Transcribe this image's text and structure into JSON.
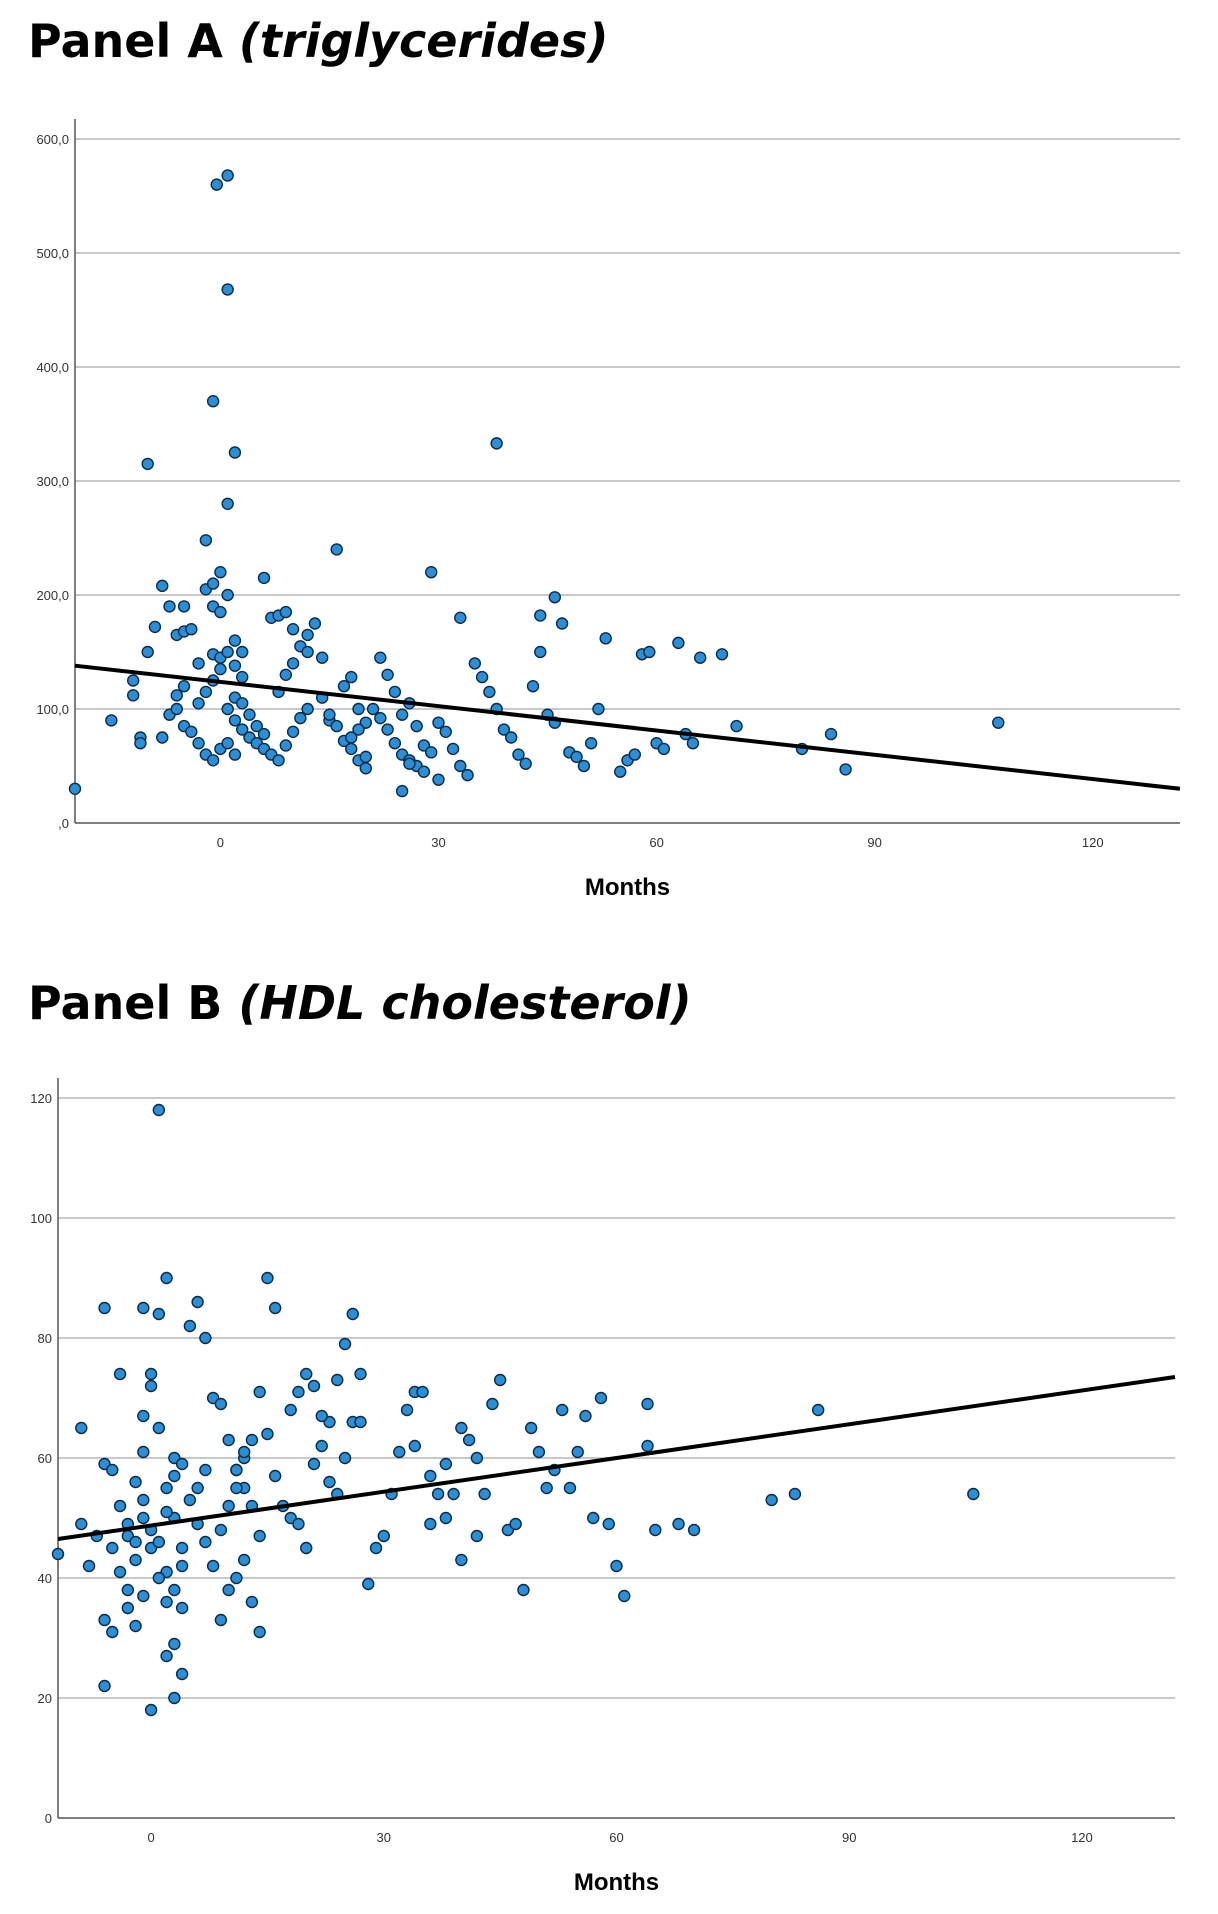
{
  "chart_data": [
    {
      "type": "scatter",
      "panel_title": "Panel A",
      "panel_subtitle": "(triglycerides)",
      "xlabel": "Months",
      "ylabel": "",
      "xlim": [
        -20,
        132
      ],
      "ylim": [
        0,
        600
      ],
      "x_ticks": [
        0,
        30,
        60,
        90,
        120
      ],
      "x_tick_labels": [
        "0",
        "30",
        "60",
        "90",
        "120"
      ],
      "y_ticks": [
        0,
        100,
        200,
        300,
        400,
        500,
        600
      ],
      "y_tick_labels": [
        ",0",
        "100,0",
        "200,0",
        "300,0",
        "400,0",
        "500,0",
        "600,0"
      ],
      "grid": true,
      "fit_line": {
        "x": [
          -20,
          132
        ],
        "y": [
          138,
          30
        ]
      },
      "points": [
        [
          -20,
          30
        ],
        [
          -15,
          90
        ],
        [
          -10,
          315
        ],
        [
          -11,
          75
        ],
        [
          -11,
          70
        ],
        [
          -12,
          112
        ],
        [
          -12,
          125
        ],
        [
          -10,
          150
        ],
        [
          -9,
          172
        ],
        [
          -8,
          208
        ],
        [
          -7,
          190
        ],
        [
          -6,
          165
        ],
        [
          -5,
          190
        ],
        [
          -5,
          168
        ],
        [
          -4,
          170
        ],
        [
          -3,
          140
        ],
        [
          -2,
          248
        ],
        [
          -2,
          205
        ],
        [
          -1,
          370
        ],
        [
          -1,
          210
        ],
        [
          0,
          220
        ],
        [
          -1,
          190
        ],
        [
          1,
          200
        ],
        [
          0,
          185
        ],
        [
          2,
          160
        ],
        [
          3,
          150
        ],
        [
          -8,
          75
        ],
        [
          -7,
          95
        ],
        [
          -6,
          100
        ],
        [
          -5,
          85
        ],
        [
          -4,
          80
        ],
        [
          -3,
          70
        ],
        [
          -2,
          60
        ],
        [
          -1,
          55
        ],
        [
          0,
          65
        ],
        [
          -6,
          112
        ],
        [
          -5,
          120
        ],
        [
          -3,
          105
        ],
        [
          -2,
          115
        ],
        [
          -1,
          125
        ],
        [
          0,
          135
        ],
        [
          -1,
          148
        ],
        [
          0,
          145
        ],
        [
          1,
          150
        ],
        [
          2,
          138
        ],
        [
          3,
          128
        ],
        [
          2,
          110
        ],
        [
          1,
          100
        ],
        [
          2,
          90
        ],
        [
          3,
          82
        ],
        [
          4,
          75
        ],
        [
          1,
          70
        ],
        [
          2,
          60
        ],
        [
          3,
          105
        ],
        [
          4,
          95
        ],
        [
          5,
          85
        ],
        [
          6,
          78
        ],
        [
          5,
          70
        ],
        [
          6,
          65
        ],
        [
          7,
          60
        ],
        [
          8,
          55
        ],
        [
          9,
          68
        ],
        [
          10,
          80
        ],
        [
          11,
          92
        ],
        [
          12,
          100
        ],
        [
          8,
          115
        ],
        [
          9,
          130
        ],
        [
          10,
          140
        ],
        [
          11,
          155
        ],
        [
          12,
          165
        ],
        [
          13,
          175
        ],
        [
          7,
          180
        ],
        [
          8,
          182
        ],
        [
          9,
          185
        ],
        [
          6,
          215
        ],
        [
          10,
          170
        ],
        [
          12,
          150
        ],
        [
          14,
          145
        ],
        [
          -0.5,
          560
        ],
        [
          1,
          568
        ],
        [
          1,
          468
        ],
        [
          2,
          325
        ],
        [
          1,
          280
        ],
        [
          16,
          240
        ],
        [
          29,
          220
        ],
        [
          38,
          333
        ],
        [
          46,
          198
        ],
        [
          33,
          180
        ],
        [
          44,
          182
        ],
        [
          47,
          175
        ],
        [
          15,
          90
        ],
        [
          16,
          85
        ],
        [
          17,
          72
        ],
        [
          18,
          65
        ],
        [
          19,
          55
        ],
        [
          20,
          48
        ],
        [
          21,
          100
        ],
        [
          22,
          92
        ],
        [
          23,
          82
        ],
        [
          24,
          70
        ],
        [
          25,
          60
        ],
        [
          26,
          55
        ],
        [
          27,
          50
        ],
        [
          14,
          110
        ],
        [
          15,
          95
        ],
        [
          17,
          120
        ],
        [
          18,
          128
        ],
        [
          19,
          100
        ],
        [
          20,
          88
        ],
        [
          22,
          145
        ],
        [
          23,
          130
        ],
        [
          24,
          115
        ],
        [
          25,
          95
        ],
        [
          26,
          105
        ],
        [
          27,
          85
        ],
        [
          28,
          68
        ],
        [
          29,
          62
        ],
        [
          30,
          88
        ],
        [
          31,
          80
        ],
        [
          32,
          65
        ],
        [
          33,
          50
        ],
        [
          34,
          42
        ],
        [
          35,
          140
        ],
        [
          36,
          128
        ],
        [
          37,
          115
        ],
        [
          38,
          100
        ],
        [
          39,
          82
        ],
        [
          40,
          75
        ],
        [
          41,
          60
        ],
        [
          42,
          52
        ],
        [
          43,
          120
        ],
        [
          44,
          150
        ],
        [
          45,
          95
        ],
        [
          46,
          88
        ],
        [
          48,
          62
        ],
        [
          49,
          58
        ],
        [
          50,
          50
        ],
        [
          51,
          70
        ],
        [
          52,
          100
        ],
        [
          53,
          162
        ],
        [
          55,
          45
        ],
        [
          56,
          55
        ],
        [
          57,
          60
        ],
        [
          58,
          148
        ],
        [
          59,
          150
        ],
        [
          60,
          70
        ],
        [
          61,
          65
        ],
        [
          63,
          158
        ],
        [
          64,
          78
        ],
        [
          65,
          70
        ],
        [
          66,
          145
        ],
        [
          69,
          148
        ],
        [
          71,
          85
        ],
        [
          80,
          65
        ],
        [
          84,
          78
        ],
        [
          86,
          47
        ],
        [
          107,
          88
        ],
        [
          25,
          28
        ],
        [
          26,
          52
        ],
        [
          28,
          45
        ],
        [
          30,
          38
        ],
        [
          18,
          75
        ],
        [
          19,
          82
        ],
        [
          20,
          58
        ]
      ]
    },
    {
      "type": "scatter",
      "panel_title": "Panel B",
      "panel_subtitle": "(HDL cholesterol)",
      "xlabel": "Months",
      "ylabel": "",
      "xlim": [
        -12,
        132
      ],
      "ylim": [
        0,
        120
      ],
      "x_ticks": [
        0,
        30,
        60,
        90,
        120
      ],
      "x_tick_labels": [
        "0",
        "30",
        "60",
        "90",
        "120"
      ],
      "y_ticks": [
        0,
        20,
        40,
        60,
        80,
        100,
        120
      ],
      "y_tick_labels": [
        "0",
        "20",
        "40",
        "60",
        "80",
        "100",
        "120"
      ],
      "grid": true,
      "fit_line": {
        "x": [
          -12,
          132
        ],
        "y": [
          46.5,
          73.5
        ]
      },
      "points": [
        [
          -12,
          44
        ],
        [
          -9,
          65
        ],
        [
          -9,
          49
        ],
        [
          -6,
          22
        ],
        [
          -6,
          33
        ],
        [
          -5,
          31
        ],
        [
          -6,
          59
        ],
        [
          -5,
          45
        ],
        [
          -4,
          74
        ],
        [
          -6,
          85
        ],
        [
          -4,
          41
        ],
        [
          -3,
          38
        ],
        [
          -2,
          43
        ],
        [
          -1,
          50
        ],
        [
          -2,
          56
        ],
        [
          -1,
          61
        ],
        [
          -3,
          47
        ],
        [
          -2,
          32
        ],
        [
          -1,
          37
        ],
        [
          0,
          45
        ],
        [
          -1,
          67
        ],
        [
          0,
          74
        ],
        [
          1,
          84
        ],
        [
          -1,
          85
        ],
        [
          0,
          72
        ],
        [
          1,
          65
        ],
        [
          2,
          90
        ],
        [
          3,
          60
        ],
        [
          2,
          55
        ],
        [
          3,
          50
        ],
        [
          4,
          45
        ],
        [
          2,
          41
        ],
        [
          3,
          38
        ],
        [
          4,
          35
        ],
        [
          3,
          29
        ],
        [
          2,
          27
        ],
        [
          4,
          24
        ],
        [
          0,
          18
        ],
        [
          3,
          20
        ],
        [
          5,
          82
        ],
        [
          6,
          86
        ],
        [
          7,
          80
        ],
        [
          8,
          70
        ],
        [
          9,
          69
        ],
        [
          10,
          63
        ],
        [
          11,
          58
        ],
        [
          12,
          55
        ],
        [
          13,
          52
        ],
        [
          14,
          47
        ],
        [
          12,
          43
        ],
        [
          11,
          40
        ],
        [
          10,
          38
        ],
        [
          9,
          33
        ],
        [
          13,
          36
        ],
        [
          14,
          31
        ],
        [
          15,
          64
        ],
        [
          16,
          57
        ],
        [
          17,
          52
        ],
        [
          18,
          50
        ],
        [
          19,
          49
        ],
        [
          20,
          45
        ],
        [
          21,
          59
        ],
        [
          22,
          62
        ],
        [
          23,
          66
        ],
        [
          24,
          73
        ],
        [
          25,
          79
        ],
        [
          26,
          84
        ],
        [
          27,
          74
        ],
        [
          15,
          90
        ],
        [
          16,
          85
        ],
        [
          14,
          71
        ],
        [
          13,
          63
        ],
        [
          12,
          60
        ],
        [
          11,
          58
        ],
        [
          18,
          68
        ],
        [
          19,
          71
        ],
        [
          20,
          74
        ],
        [
          21,
          72
        ],
        [
          22,
          67
        ],
        [
          23,
          56
        ],
        [
          24,
          54
        ],
        [
          25,
          60
        ],
        [
          26,
          66
        ],
        [
          27,
          66
        ],
        [
          28,
          39
        ],
        [
          29,
          45
        ],
        [
          30,
          47
        ],
        [
          31,
          54
        ],
        [
          32,
          61
        ],
        [
          33,
          68
        ],
        [
          34,
          71
        ],
        [
          35,
          71
        ],
        [
          36,
          49
        ],
        [
          37,
          54
        ],
        [
          38,
          59
        ],
        [
          39,
          54
        ],
        [
          40,
          65
        ],
        [
          41,
          63
        ],
        [
          42,
          60
        ],
        [
          43,
          54
        ],
        [
          44,
          69
        ],
        [
          45,
          73
        ],
        [
          46,
          48
        ],
        [
          47,
          49
        ],
        [
          48,
          38
        ],
        [
          49,
          65
        ],
        [
          50,
          61
        ],
        [
          51,
          55
        ],
        [
          52,
          58
        ],
        [
          53,
          68
        ],
        [
          54,
          55
        ],
        [
          55,
          61
        ],
        [
          56,
          67
        ],
        [
          57,
          50
        ],
        [
          58,
          70
        ],
        [
          59,
          49
        ],
        [
          60,
          42
        ],
        [
          61,
          37
        ],
        [
          64,
          69
        ],
        [
          64,
          62
        ],
        [
          65,
          48
        ],
        [
          68,
          49
        ],
        [
          70,
          48
        ],
        [
          80,
          53
        ],
        [
          83,
          54
        ],
        [
          86,
          68
        ],
        [
          106,
          54
        ],
        [
          34,
          62
        ],
        [
          36,
          57
        ],
        [
          38,
          50
        ],
        [
          40,
          43
        ],
        [
          42,
          47
        ],
        [
          1,
          118
        ],
        [
          -5,
          58
        ],
        [
          -4,
          52
        ],
        [
          -3,
          49
        ],
        [
          -2,
          46
        ],
        [
          -1,
          53
        ],
        [
          0,
          48
        ],
        [
          1,
          46
        ],
        [
          2,
          51
        ],
        [
          3,
          57
        ],
        [
          4,
          59
        ],
        [
          5,
          53
        ],
        [
          6,
          49
        ],
        [
          7,
          46
        ],
        [
          8,
          42
        ],
        [
          9,
          48
        ],
        [
          10,
          52
        ],
        [
          11,
          55
        ],
        [
          12,
          61
        ],
        [
          -7,
          47
        ],
        [
          -8,
          42
        ],
        [
          -3,
          35
        ],
        [
          1,
          40
        ],
        [
          2,
          36
        ],
        [
          4,
          42
        ],
        [
          6,
          55
        ],
        [
          7,
          58
        ]
      ]
    }
  ]
}
